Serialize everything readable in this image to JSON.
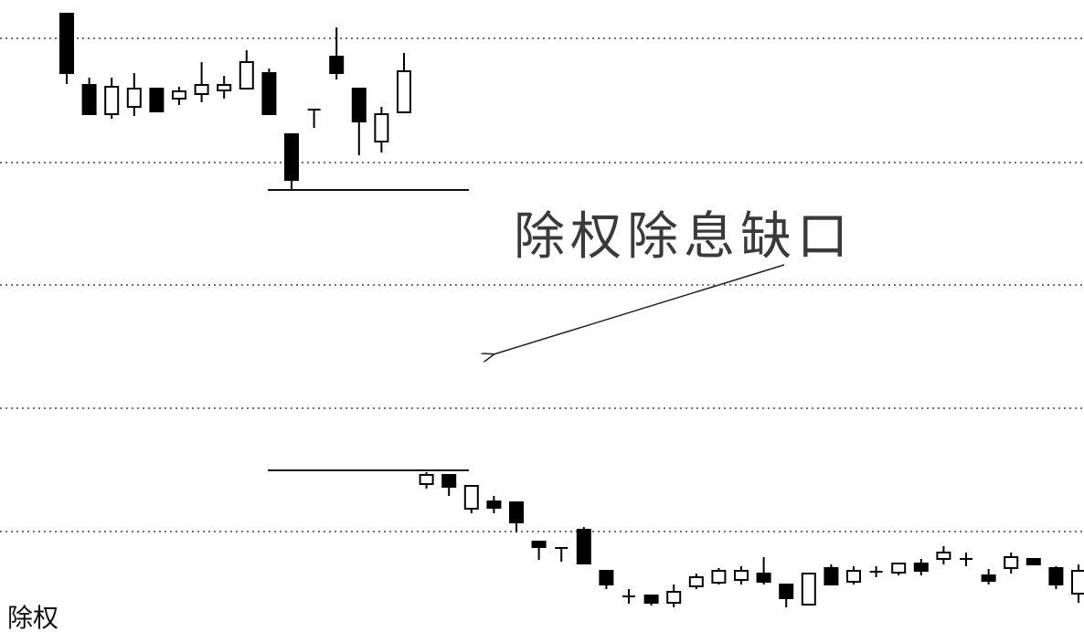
{
  "chart_data": {
    "type": "candlestick",
    "annotation": "除权除息缺口",
    "caption": "除权",
    "categories": [
      null,
      null,
      null,
      null,
      null,
      null,
      null,
      null,
      null,
      null,
      null,
      null,
      null,
      null,
      null,
      null,
      null,
      null,
      null,
      null,
      null,
      null,
      null,
      null,
      null,
      null,
      null,
      null,
      null,
      null,
      null,
      null,
      null,
      null,
      null,
      null,
      null,
      null,
      null,
      null,
      null,
      null,
      null,
      null,
      null,
      null
    ],
    "open": [
      677,
      599,
      567,
      575,
      595,
      584,
      589,
      593,
      595,
      612,
      545,
      572,
      630,
      595,
      537,
      569,
      162,
      172,
      135,
      143,
      142,
      99,
      92,
      112,
      67,
      39,
      40,
      32,
      50,
      54,
      57,
      64,
      52,
      30,
      70,
      55,
      66,
      65,
      75,
      80,
      80,
      62,
      70,
      80,
      70,
      42
    ],
    "high": [
      677,
      607,
      607,
      612,
      595,
      597,
      624,
      609,
      637,
      617,
      545,
      572,
      662,
      595,
      575,
      634,
      175,
      172,
      160,
      149,
      142,
      99,
      92,
      115,
      67,
      47,
      40,
      52,
      64,
      70,
      72,
      82,
      52,
      64,
      74,
      72,
      72,
      75,
      80,
      94,
      87,
      69,
      87,
      80,
      72,
      74
    ],
    "low": [
      600,
      567,
      562,
      565,
      570,
      577,
      580,
      584,
      595,
      567,
      484,
      552,
      605,
      522,
      525,
      569,
      157,
      149,
      130,
      130,
      109,
      79,
      77,
      75,
      47,
      31,
      29,
      27,
      47,
      52,
      52,
      52,
      27,
      30,
      52,
      52,
      60,
      62,
      62,
      74,
      72,
      52,
      64,
      74,
      47,
      32
    ],
    "close": [
      612,
      567,
      597,
      595,
      570,
      592,
      599,
      599,
      624,
      567,
      495,
      572,
      612,
      559,
      567,
      614,
      172,
      159,
      160,
      136,
      120,
      93,
      92,
      75,
      52,
      39,
      32,
      44,
      60,
      67,
      67,
      55,
      37,
      64,
      52,
      67,
      66,
      75,
      67,
      87,
      80,
      56,
      82,
      74,
      52,
      67
    ],
    "reference_levels": [
      484,
      177
    ],
    "ylim": [
      0,
      692
    ],
    "yticks": [
      650,
      514,
      380,
      245,
      110
    ],
    "grid": true,
    "color": "#000000"
  }
}
